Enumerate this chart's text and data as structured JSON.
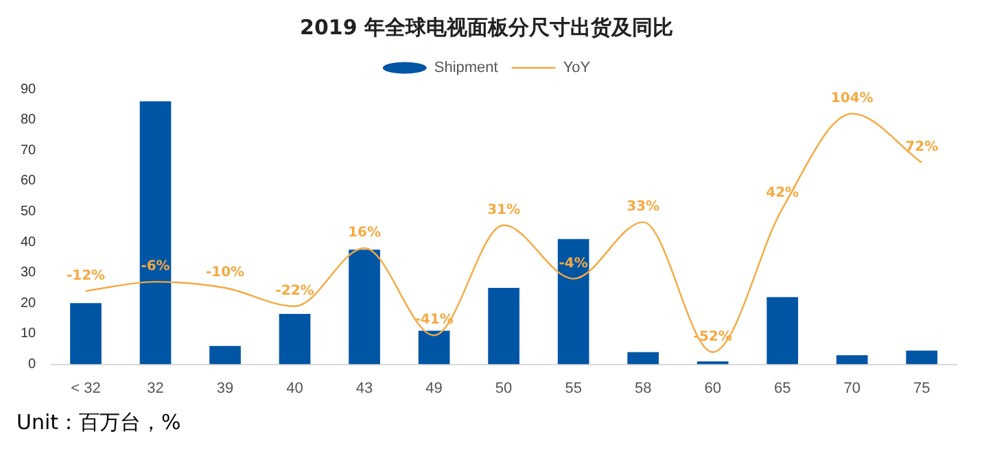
{
  "chart_data": {
    "type": "bar",
    "title": "2019 年全球电视面板分尺寸出货及同比",
    "categories": [
      "< 32",
      "32",
      "39",
      "40",
      "43",
      "49",
      "50",
      "55",
      "58",
      "60",
      "65",
      "70",
      "75"
    ],
    "series": [
      {
        "name": "Shipment",
        "color": "#0055a5",
        "values": [
          20,
          86,
          6,
          16.5,
          37.5,
          11,
          25,
          41,
          4,
          1,
          22,
          3,
          4.5
        ]
      },
      {
        "name": "YoY",
        "type": "line",
        "axis": "y2",
        "color": "#f5a940",
        "values": [
          -12,
          -6,
          -10,
          -22,
          16,
          -41,
          31,
          -4,
          33,
          -52,
          42,
          104,
          72
        ],
        "value_labels": [
          "-12%",
          "-6%",
          "-10%",
          "-22%",
          "16%",
          "-41%",
          "31%",
          "-4%",
          "33%",
          "-52%",
          "42%",
          "104%",
          "72%"
        ]
      }
    ],
    "ylim": [
      0,
      90
    ],
    "yticks": [
      0,
      10,
      20,
      30,
      40,
      50,
      60,
      70,
      80,
      90
    ],
    "grid": false,
    "legend": "top",
    "tick_labels": "xy",
    "annotations": [
      "Unit：百万台，%"
    ]
  }
}
